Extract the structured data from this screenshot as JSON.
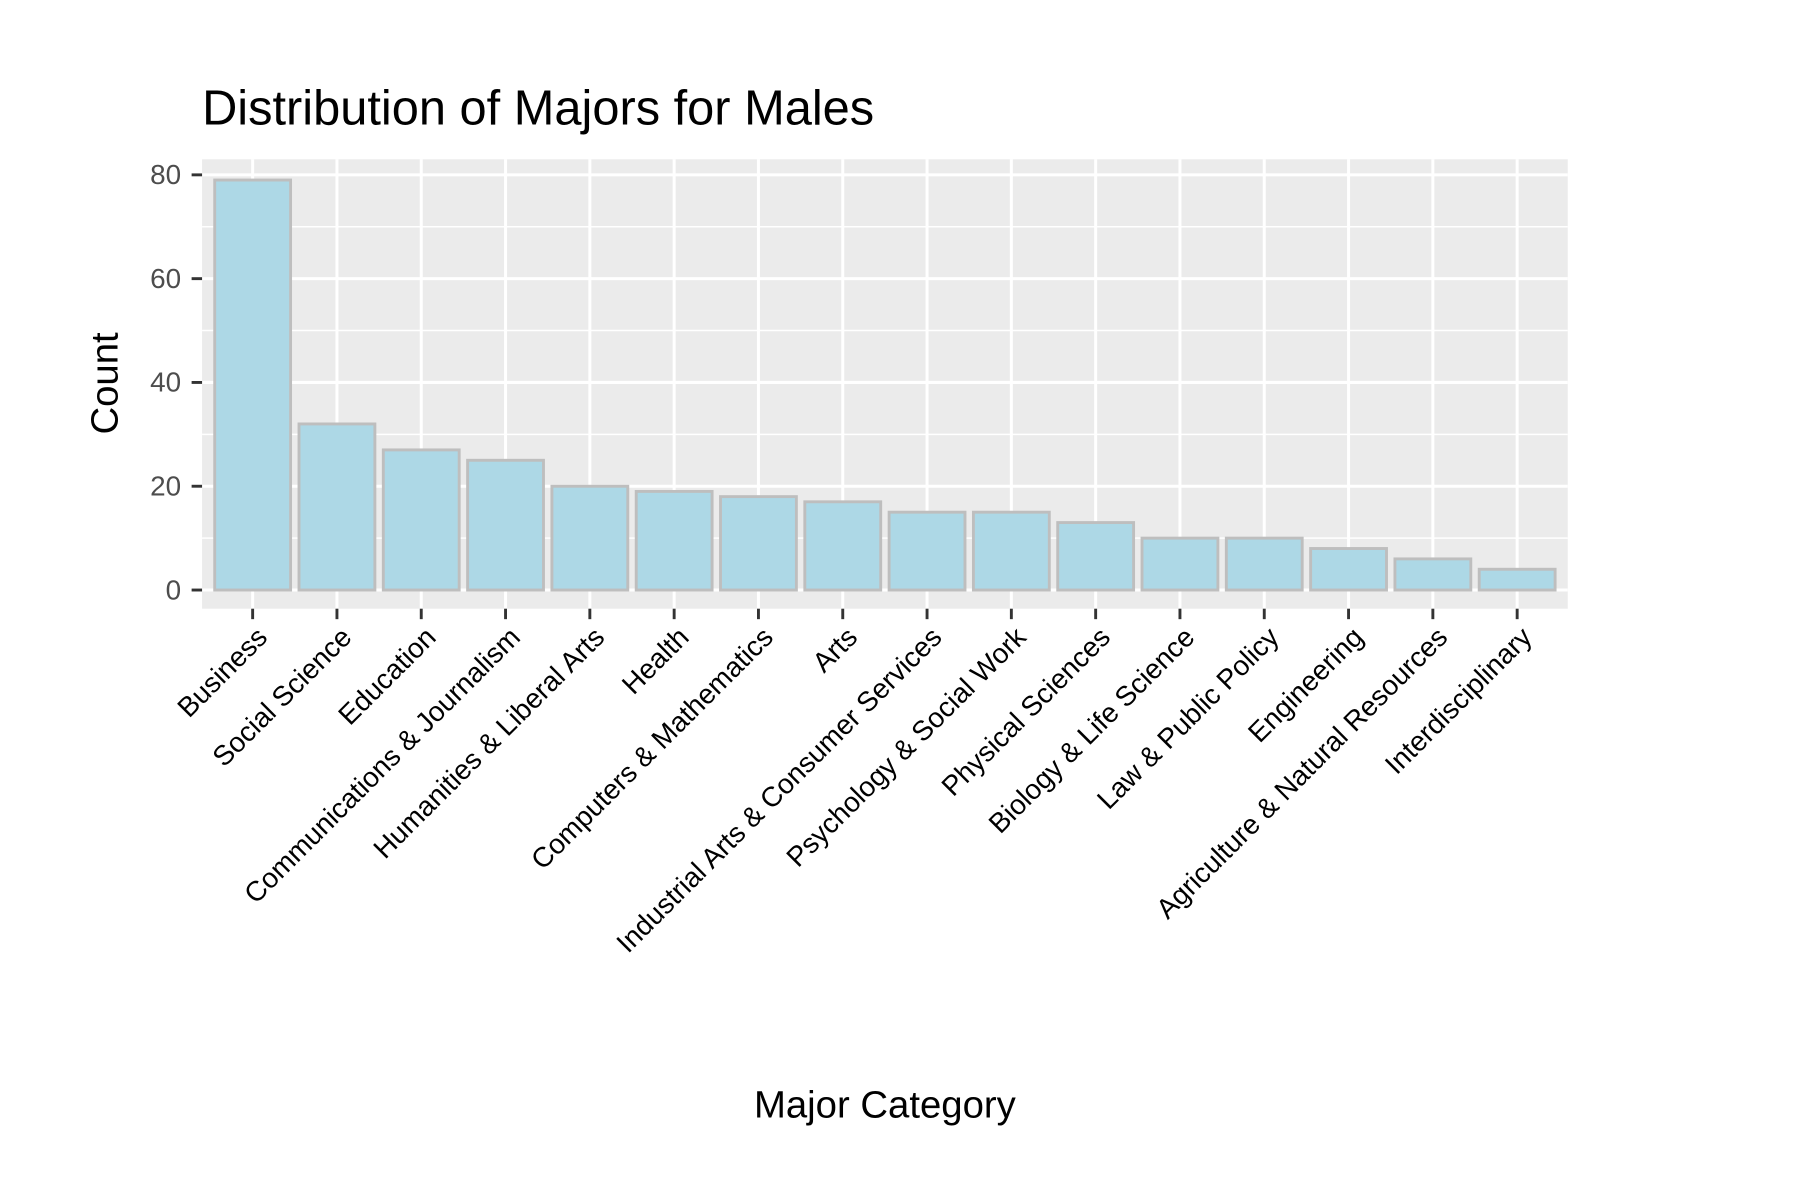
{
  "chart_data": {
    "type": "bar",
    "title": "Distribution of Majors for Males",
    "xlabel": "Major Category",
    "ylabel": "Count",
    "categories": [
      "Business",
      "Social Science",
      "Education",
      "Communications & Journalism",
      "Humanities & Liberal Arts",
      "Health",
      "Computers & Mathematics",
      "Arts",
      "Industrial Arts & Consumer Services",
      "Psychology & Social Work",
      "Physical Sciences",
      "Biology & Life Science",
      "Law & Public Policy",
      "Engineering",
      "Agriculture & Natural Resources",
      "Interdisciplinary"
    ],
    "values": [
      79,
      32,
      27,
      25,
      20,
      19,
      18,
      17,
      15,
      15,
      13,
      10,
      10,
      8,
      6,
      4
    ],
    "yticks": [
      0,
      20,
      40,
      60,
      80
    ],
    "ylim": [
      -3.6,
      83
    ],
    "grid": true,
    "bar_fill": "#add8e6",
    "bar_outline": "#bebebe",
    "panel_background": "#ebebeb"
  }
}
